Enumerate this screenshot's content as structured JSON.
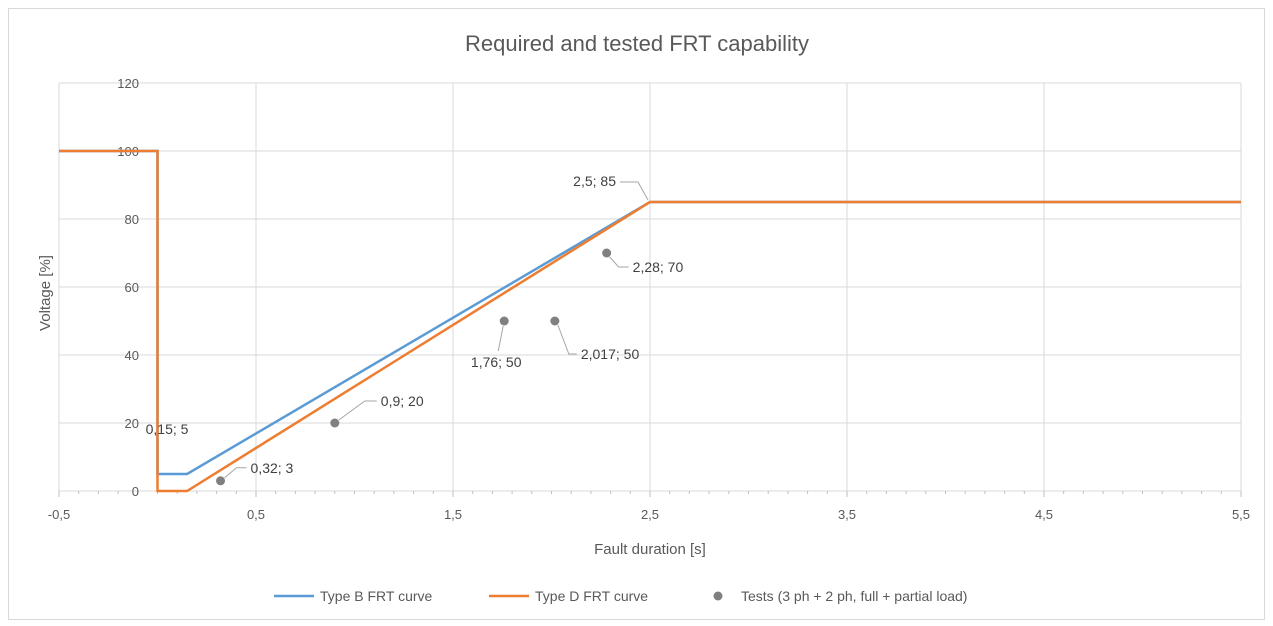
{
  "chart_data": {
    "type": "line",
    "title": "Required and tested FRT capability",
    "xlabel": "Fault duration [s]",
    "ylabel": "Voltage [%]",
    "xlim": [
      -0.5,
      5.5
    ],
    "ylim": [
      0,
      120
    ],
    "x_ticks": [
      "-0,5",
      "0,5",
      "1,5",
      "2,5",
      "3,5",
      "4,5",
      "5,5"
    ],
    "x_tick_values": [
      -0.5,
      0.5,
      1.5,
      2.5,
      3.5,
      4.5,
      5.5
    ],
    "y_ticks": [
      "0",
      "20",
      "40",
      "60",
      "80",
      "100",
      "120"
    ],
    "y_tick_values": [
      0,
      20,
      40,
      60,
      80,
      100,
      120
    ],
    "grid": true,
    "legend_position": "bottom",
    "series": [
      {
        "name": "Type B FRT curve",
        "kind": "line",
        "color": "#5b9bd5",
        "points": [
          [
            -0.5,
            100
          ],
          [
            0,
            100
          ],
          [
            0,
            5
          ],
          [
            0.15,
            5
          ],
          [
            2.5,
            85
          ],
          [
            5.5,
            85
          ]
        ]
      },
      {
        "name": "Type D FRT curve",
        "kind": "line",
        "color": "#ed7d31",
        "points": [
          [
            -0.5,
            100
          ],
          [
            0,
            100
          ],
          [
            0,
            0
          ],
          [
            0.15,
            0
          ],
          [
            2.5,
            85
          ],
          [
            5.5,
            85
          ]
        ]
      },
      {
        "name": "Tests (3 ph + 2 ph, full + partial load)",
        "kind": "scatter",
        "color": "#808080",
        "points": [
          [
            0.32,
            3
          ],
          [
            0.9,
            20
          ],
          [
            1.76,
            50
          ],
          [
            2.017,
            50
          ],
          [
            2.28,
            70
          ]
        ]
      }
    ],
    "data_labels": [
      {
        "text": "0,15; 5",
        "x": 0.15,
        "y": 5,
        "side": "above"
      },
      {
        "text": "2,5; 85",
        "x": 2.5,
        "y": 85,
        "side": "upper-left"
      },
      {
        "text": "0,32; 3",
        "x": 0.32,
        "y": 3,
        "side": "right"
      },
      {
        "text": "0,9; 20",
        "x": 0.9,
        "y": 20,
        "side": "upper-right"
      },
      {
        "text": "1,76; 50",
        "x": 1.76,
        "y": 50,
        "side": "below-left"
      },
      {
        "text": "2,017; 50",
        "x": 2.017,
        "y": 50,
        "side": "lower-right"
      },
      {
        "text": "2,28; 70",
        "x": 2.28,
        "y": 70,
        "side": "lower-right"
      }
    ]
  }
}
